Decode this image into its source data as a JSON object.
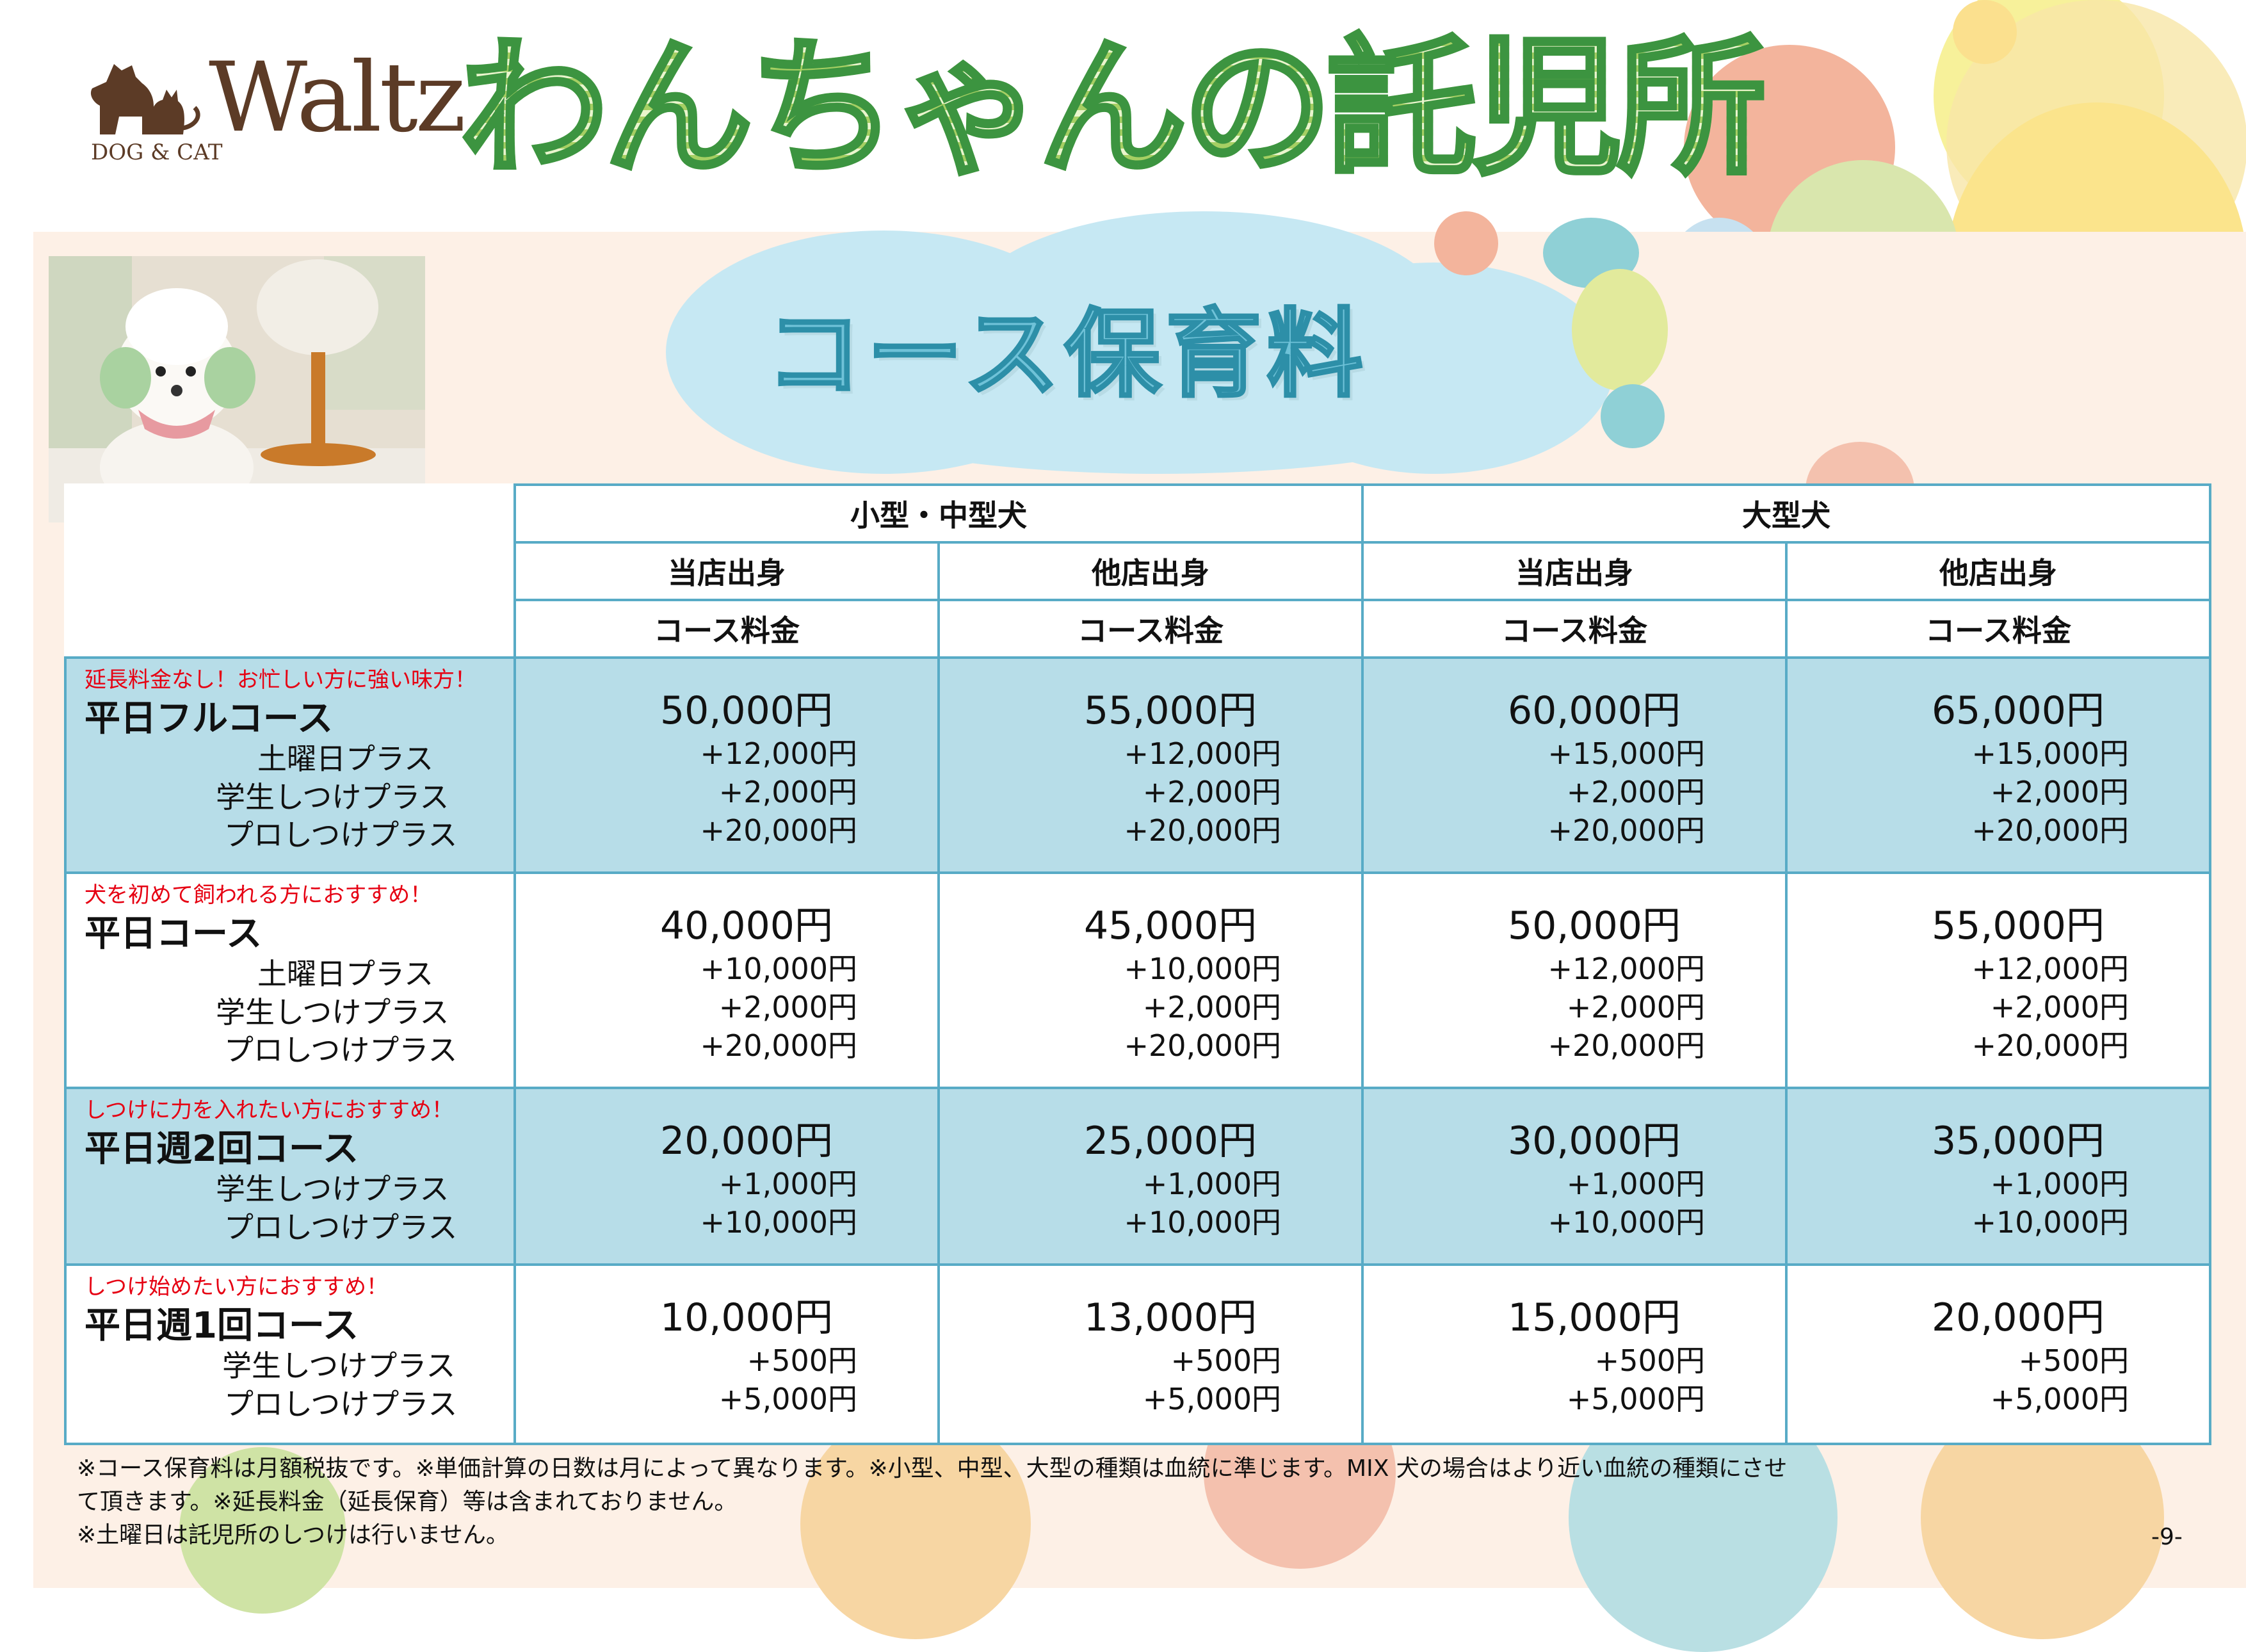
{
  "logo": {
    "word": "Waltz",
    "sub": "DOG & CAT"
  },
  "title": "わんちゃんの託児所",
  "subtitle": "コース保育料",
  "header": {
    "group_small": "小型・中型犬",
    "group_large": "大型犬",
    "origin_own": "当店出身",
    "origin_other": "他店出身",
    "fee_label": "コース料金"
  },
  "courses": [
    {
      "note": "延長料金なし！お忙しい方に強い味方！",
      "name": "平日フルコース",
      "options": [
        "土曜日プラス",
        "学生しつけプラス",
        "プロしつけプラス"
      ],
      "prices": [
        {
          "main": "50,000円",
          "adds": [
            "+12,000円",
            "+2,000円",
            "+20,000円"
          ]
        },
        {
          "main": "55,000円",
          "adds": [
            "+12,000円",
            "+2,000円",
            "+20,000円"
          ]
        },
        {
          "main": "60,000円",
          "adds": [
            "+15,000円",
            "+2,000円",
            "+20,000円"
          ]
        },
        {
          "main": "65,000円",
          "adds": [
            "+15,000円",
            "+2,000円",
            "+20,000円"
          ]
        }
      ]
    },
    {
      "note": "犬を初めて飼われる方におすすめ！",
      "name": "平日コース",
      "options": [
        "土曜日プラス",
        "学生しつけプラス",
        "プロしつけプラス"
      ],
      "prices": [
        {
          "main": "40,000円",
          "adds": [
            "+10,000円",
            "+2,000円",
            "+20,000円"
          ]
        },
        {
          "main": "45,000円",
          "adds": [
            "+10,000円",
            "+2,000円",
            "+20,000円"
          ]
        },
        {
          "main": "50,000円",
          "adds": [
            "+12,000円",
            "+2,000円",
            "+20,000円"
          ]
        },
        {
          "main": "55,000円",
          "adds": [
            "+12,000円",
            "+2,000円",
            "+20,000円"
          ]
        }
      ]
    },
    {
      "note": "しつけに力を入れたい方におすすめ！",
      "name": "平日週2回コース",
      "options": [
        "学生しつけプラス",
        "プロしつけプラス"
      ],
      "prices": [
        {
          "main": "20,000円",
          "adds": [
            "+1,000円",
            "+10,000円"
          ]
        },
        {
          "main": "25,000円",
          "adds": [
            "+1,000円",
            "+10,000円"
          ]
        },
        {
          "main": "30,000円",
          "adds": [
            "+1,000円",
            "+10,000円"
          ]
        },
        {
          "main": "35,000円",
          "adds": [
            "+1,000円",
            "+10,000円"
          ]
        }
      ]
    },
    {
      "note": "しつけ始めたい方におすすめ！",
      "name": "平日週1回コース",
      "options": [
        "学生しつけプラス",
        "プロしつけプラス"
      ],
      "prices": [
        {
          "main": "10,000円",
          "adds": [
            "+500円",
            "+5,000円"
          ]
        },
        {
          "main": "13,000円",
          "adds": [
            "+500円",
            "+5,000円"
          ]
        },
        {
          "main": "15,000円",
          "adds": [
            "+500円",
            "+5,000円"
          ]
        },
        {
          "main": "20,000円",
          "adds": [
            "+500円",
            "+5,000円"
          ]
        }
      ]
    }
  ],
  "footnotes": [
    "※コース保育料は月額税抜です。※単価計算の日数は月によって異なります。※小型、中型、大型の種類は血統に準じます。MIX 犬の場合はより近い血統の種類にさせ",
    "て頂きます。※延長料金（延長保育）等は含まれておりません。",
    "※土曜日は託児所のしつけは行いません。"
  ],
  "page_number": "-9-",
  "colors": {
    "table_border": "#58abc6",
    "row_highlight": "#b7dde8",
    "note_red": "#e60012",
    "title_green": "#3c9440",
    "subtitle_blue": "#2d8fa8",
    "logo_brown": "#5c3b26"
  }
}
